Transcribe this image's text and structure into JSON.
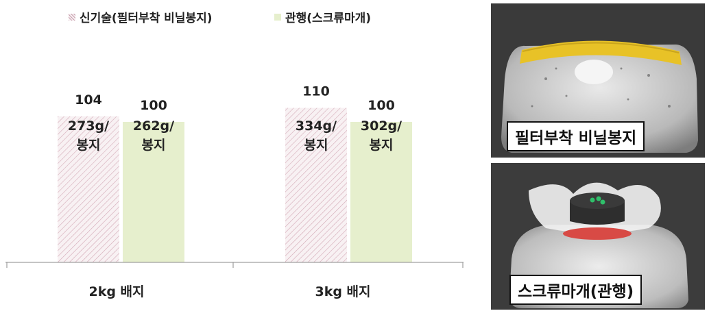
{
  "chart_data": {
    "type": "bar",
    "categories": [
      "2kg 배지",
      "3kg 배지"
    ],
    "series": [
      {
        "name": "신기술(필터부착 비닐봉지)",
        "values": [
          104,
          110
        ],
        "inner_labels": [
          [
            "273g/",
            "봉지"
          ],
          [
            "334g/",
            "봉지"
          ]
        ],
        "color": "#e6cfd6",
        "pattern": "hatched"
      },
      {
        "name": "관행(스크류마개)",
        "values": [
          100,
          100
        ],
        "inner_labels": [
          [
            "262g/",
            "봉지"
          ],
          [
            "302g/",
            "봉지"
          ]
        ],
        "color": "#e6efcd",
        "pattern": "solid"
      }
    ],
    "ylim": [
      0,
      130
    ],
    "grid": false,
    "legend": "top"
  },
  "photos": [
    {
      "label": "필터부착  비닐봉지",
      "tie_color": "#e8c227"
    },
    {
      "label": "스크류마개(관행)",
      "tie_color": "#d84a45"
    }
  ]
}
